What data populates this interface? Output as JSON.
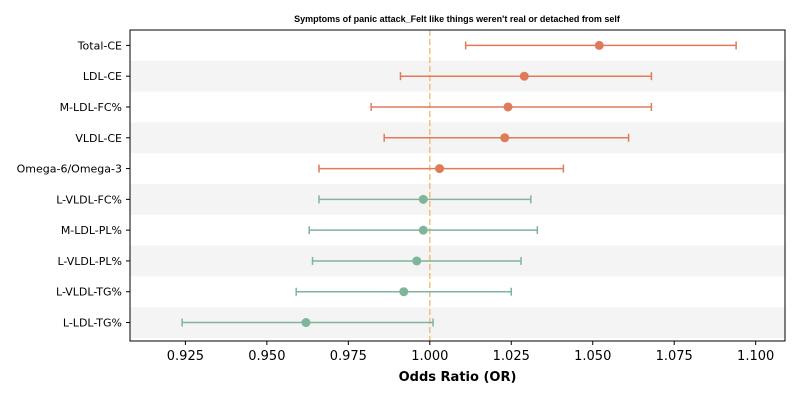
{
  "chart_data": {
    "type": "forest",
    "title": "Symptoms of panic attack_Felt like things weren't real or detached from self",
    "xlabel": "Odds Ratio (OR)",
    "xlim": [
      0.908,
      1.109
    ],
    "xticks": [
      "0.925",
      "0.950",
      "0.975",
      "1.000",
      "1.025",
      "1.050",
      "1.075",
      "1.100"
    ],
    "reference_line": 1.0,
    "reference_color": "#f0c27a",
    "colors": {
      "above": "#e07b5a",
      "below": "#7fb59a"
    },
    "rows": [
      {
        "label": "Total-CE",
        "or": 1.052,
        "lo": 1.011,
        "hi": 1.094,
        "group": "above"
      },
      {
        "label": "LDL-CE",
        "or": 1.029,
        "lo": 0.991,
        "hi": 1.068,
        "group": "above"
      },
      {
        "label": "M-LDL-FC%",
        "or": 1.024,
        "lo": 0.982,
        "hi": 1.068,
        "group": "above"
      },
      {
        "label": "VLDL-CE",
        "or": 1.023,
        "lo": 0.986,
        "hi": 1.061,
        "group": "above"
      },
      {
        "label": "Omega-6/Omega-3",
        "or": 1.003,
        "lo": 0.966,
        "hi": 1.041,
        "group": "above"
      },
      {
        "label": "L-VLDL-FC%",
        "or": 0.998,
        "lo": 0.966,
        "hi": 1.031,
        "group": "below"
      },
      {
        "label": "M-LDL-PL%",
        "or": 0.998,
        "lo": 0.963,
        "hi": 1.033,
        "group": "below"
      },
      {
        "label": "L-VLDL-PL%",
        "or": 0.996,
        "lo": 0.964,
        "hi": 1.028,
        "group": "below"
      },
      {
        "label": "L-VLDL-TG%",
        "or": 0.992,
        "lo": 0.959,
        "hi": 1.025,
        "group": "below"
      },
      {
        "label": "L-LDL-TG%",
        "or": 0.962,
        "lo": 0.924,
        "hi": 1.001,
        "group": "below"
      }
    ]
  }
}
